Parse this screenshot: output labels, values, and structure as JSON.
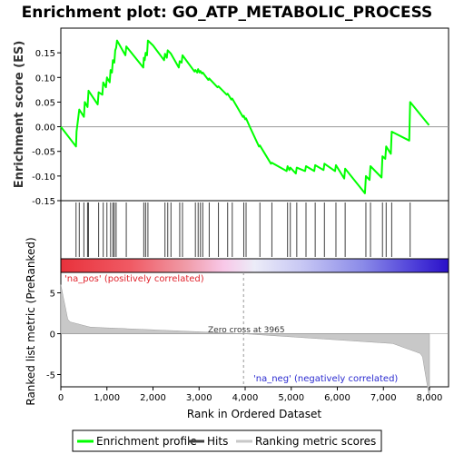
{
  "chart_data": {
    "type": "line",
    "title": "Enrichment plot: GO_ATP_METABOLIC_PROCESS",
    "panels": {
      "enrichment": {
        "ylabel": "Enrichment score (ES)",
        "ylim": [
          -0.15,
          0.2
        ],
        "yticks": [
          "-0.15",
          "-0.10",
          "-0.05",
          "0.00",
          "0.05",
          "0.10",
          "0.15"
        ],
        "series": [
          {
            "name": "Enrichment profile",
            "color": "#00ff00",
            "x": [
              0,
              330,
              340,
              400,
              500,
              520,
              580,
              600,
              800,
              820,
              900,
              920,
              980,
              1000,
              1060,
              1080,
              1110,
              1130,
              1160,
              1180,
              1200,
              1220,
              1400,
              1420,
              1790,
              1800,
              1820,
              1840,
              1870,
              1890,
              2000,
              2240,
              2260,
              2300,
              2320,
              2370,
              2390,
              2560,
              2580,
              2620,
              2640,
              2900,
              2920,
              2960,
              2980,
              3010,
              3030,
              3060,
              3080,
              3200,
              3220,
              3400,
              3420,
              3600,
              3620,
              3700,
              3720,
              3950,
              3970,
              4000,
              4020,
              4100,
              4300,
              4320,
              4560,
              4580,
              4900,
              4920,
              4960,
              4980,
              5100,
              5120,
              5300,
              5320,
              5500,
              5520,
              5700,
              5720,
              5950,
              5970,
              6150,
              6170,
              6600,
              6620,
              6700,
              6720,
              6960,
              6980,
              7040,
              7060,
              7160,
              7180,
              7560,
              7580,
              7990
            ],
            "y": [
              0.0,
              -0.04,
              -0.01,
              0.035,
              0.02,
              0.05,
              0.04,
              0.073,
              0.045,
              0.07,
              0.065,
              0.09,
              0.08,
              0.1,
              0.09,
              0.115,
              0.11,
              0.135,
              0.13,
              0.155,
              0.16,
              0.175,
              0.145,
              0.163,
              0.12,
              0.14,
              0.135,
              0.15,
              0.145,
              0.175,
              0.165,
              0.135,
              0.148,
              0.14,
              0.155,
              0.15,
              0.148,
              0.12,
              0.133,
              0.13,
              0.145,
              0.112,
              0.115,
              0.11,
              0.117,
              0.11,
              0.113,
              0.108,
              0.11,
              0.095,
              0.098,
              0.08,
              0.082,
              0.065,
              0.067,
              0.055,
              0.057,
              0.02,
              0.022,
              0.015,
              0.017,
              0.0,
              -0.04,
              -0.038,
              -0.075,
              -0.073,
              -0.09,
              -0.08,
              -0.088,
              -0.083,
              -0.095,
              -0.083,
              -0.09,
              -0.08,
              -0.09,
              -0.078,
              -0.088,
              -0.075,
              -0.09,
              -0.078,
              -0.105,
              -0.085,
              -0.135,
              -0.1,
              -0.108,
              -0.08,
              -0.103,
              -0.06,
              -0.065,
              -0.04,
              -0.055,
              -0.01,
              -0.028,
              0.05,
              0.003
            ]
          }
        ]
      },
      "hits": {
        "label": "Hits",
        "positions": [
          330,
          400,
          500,
          580,
          600,
          820,
          920,
          1000,
          1080,
          1130,
          1160,
          1200,
          1420,
          1800,
          1840,
          1890,
          2260,
          2320,
          2390,
          2580,
          2640,
          2920,
          2980,
          3030,
          3080,
          3220,
          3420,
          3620,
          3720,
          3970,
          4020,
          4320,
          4580,
          4920,
          4980,
          5120,
          5320,
          5520,
          5720,
          5970,
          6170,
          6620,
          6720,
          6980,
          7060,
          7180,
          7580
        ]
      },
      "ranked_metric": {
        "ylabel": "Ranked list metric (PreRanked)",
        "ylim": [
          -6.5,
          7.5
        ],
        "yticks": [
          "-5",
          "0",
          "5"
        ],
        "pos_label": "'na_pos' (positively correlated)",
        "neg_label": "'na_neg' (negatively correlated)",
        "zero_cross_label": "Zero cross at 3965",
        "zero_cross": 3965
      }
    },
    "xlabel": "Rank in Ordered Dataset",
    "xlim": [
      0,
      8000
    ],
    "xticks": [
      "0",
      "1,000",
      "2,000",
      "3,000",
      "4,000",
      "5,000",
      "6,000",
      "7,000",
      "8,000"
    ],
    "legend": {
      "placement": "bottom",
      "items": [
        {
          "label": "Enrichment profile",
          "color": "#00ff00"
        },
        {
          "label": "Hits",
          "color": "#404040"
        },
        {
          "label": "Ranking metric scores",
          "color": "#c8c8c8"
        }
      ]
    },
    "grid": false
  }
}
